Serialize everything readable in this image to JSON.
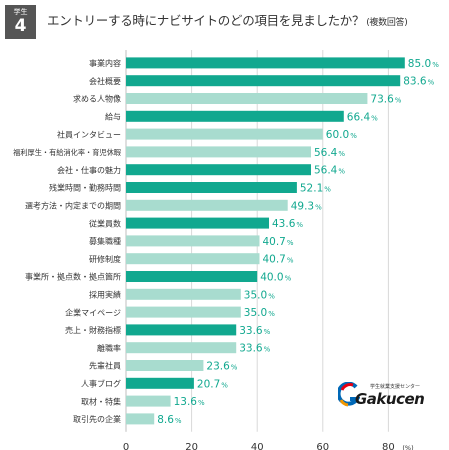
{
  "header": {
    "badge_label": "学生",
    "badge_number": "4",
    "title": "エントリーする時にナビサイトのどの項目を見ましたか？",
    "subtitle": "(複数回答)"
  },
  "logo": {
    "tagline": "学生就業支援センター",
    "wordmark": "Gakucen",
    "colors": [
      "#e60012",
      "#0068b7",
      "#f39800"
    ]
  },
  "colors": {
    "dark": "#11a88f",
    "light": "#a8dccf",
    "grid": "#d9d9d9",
    "label": "#11a88f"
  },
  "chart_data": {
    "type": "bar",
    "orientation": "horizontal",
    "categories": [
      "事業内容",
      "会社概要",
      "求める人物像",
      "給与",
      "社員インタビュー",
      "福利厚生・有給消化率・育児休暇",
      "会社・仕事の魅力",
      "残業時間・勤務時間",
      "選考方法・内定までの期間",
      "従業員数",
      "募集職種",
      "研修制度",
      "事業所・拠点数・拠点箇所",
      "採用実績",
      "企業マイページ",
      "売上・財務指標",
      "離職率",
      "先輩社員",
      "人事ブログ",
      "取材・特集",
      "取引先の企業"
    ],
    "values": [
      85.0,
      83.6,
      73.6,
      66.4,
      60.0,
      56.4,
      56.4,
      52.1,
      49.3,
      43.6,
      40.7,
      40.7,
      40.0,
      35.0,
      35.0,
      33.6,
      33.6,
      23.6,
      20.7,
      13.6,
      8.6
    ],
    "value_labels": [
      "85.0",
      "83.6",
      "73.6",
      "66.4",
      "60.0",
      "56.4",
      "56.4",
      "52.1",
      "49.3",
      "43.6",
      "40.7",
      "40.7",
      "40.0",
      "35.0",
      "35.0",
      "33.6",
      "33.6",
      "23.6",
      "20.7",
      "13.6",
      "8.6"
    ],
    "shade": [
      "dark",
      "dark",
      "light",
      "dark",
      "light",
      "light",
      "dark",
      "dark",
      "light",
      "dark",
      "light",
      "light",
      "dark",
      "light",
      "light",
      "dark",
      "light",
      "light",
      "dark",
      "light",
      "light"
    ],
    "value_unit": "%",
    "x_ticks": [
      "0",
      "20",
      "40",
      "60",
      "80"
    ],
    "xlim": [
      0,
      85
    ],
    "x_unit": "(%)",
    "grid": true
  }
}
